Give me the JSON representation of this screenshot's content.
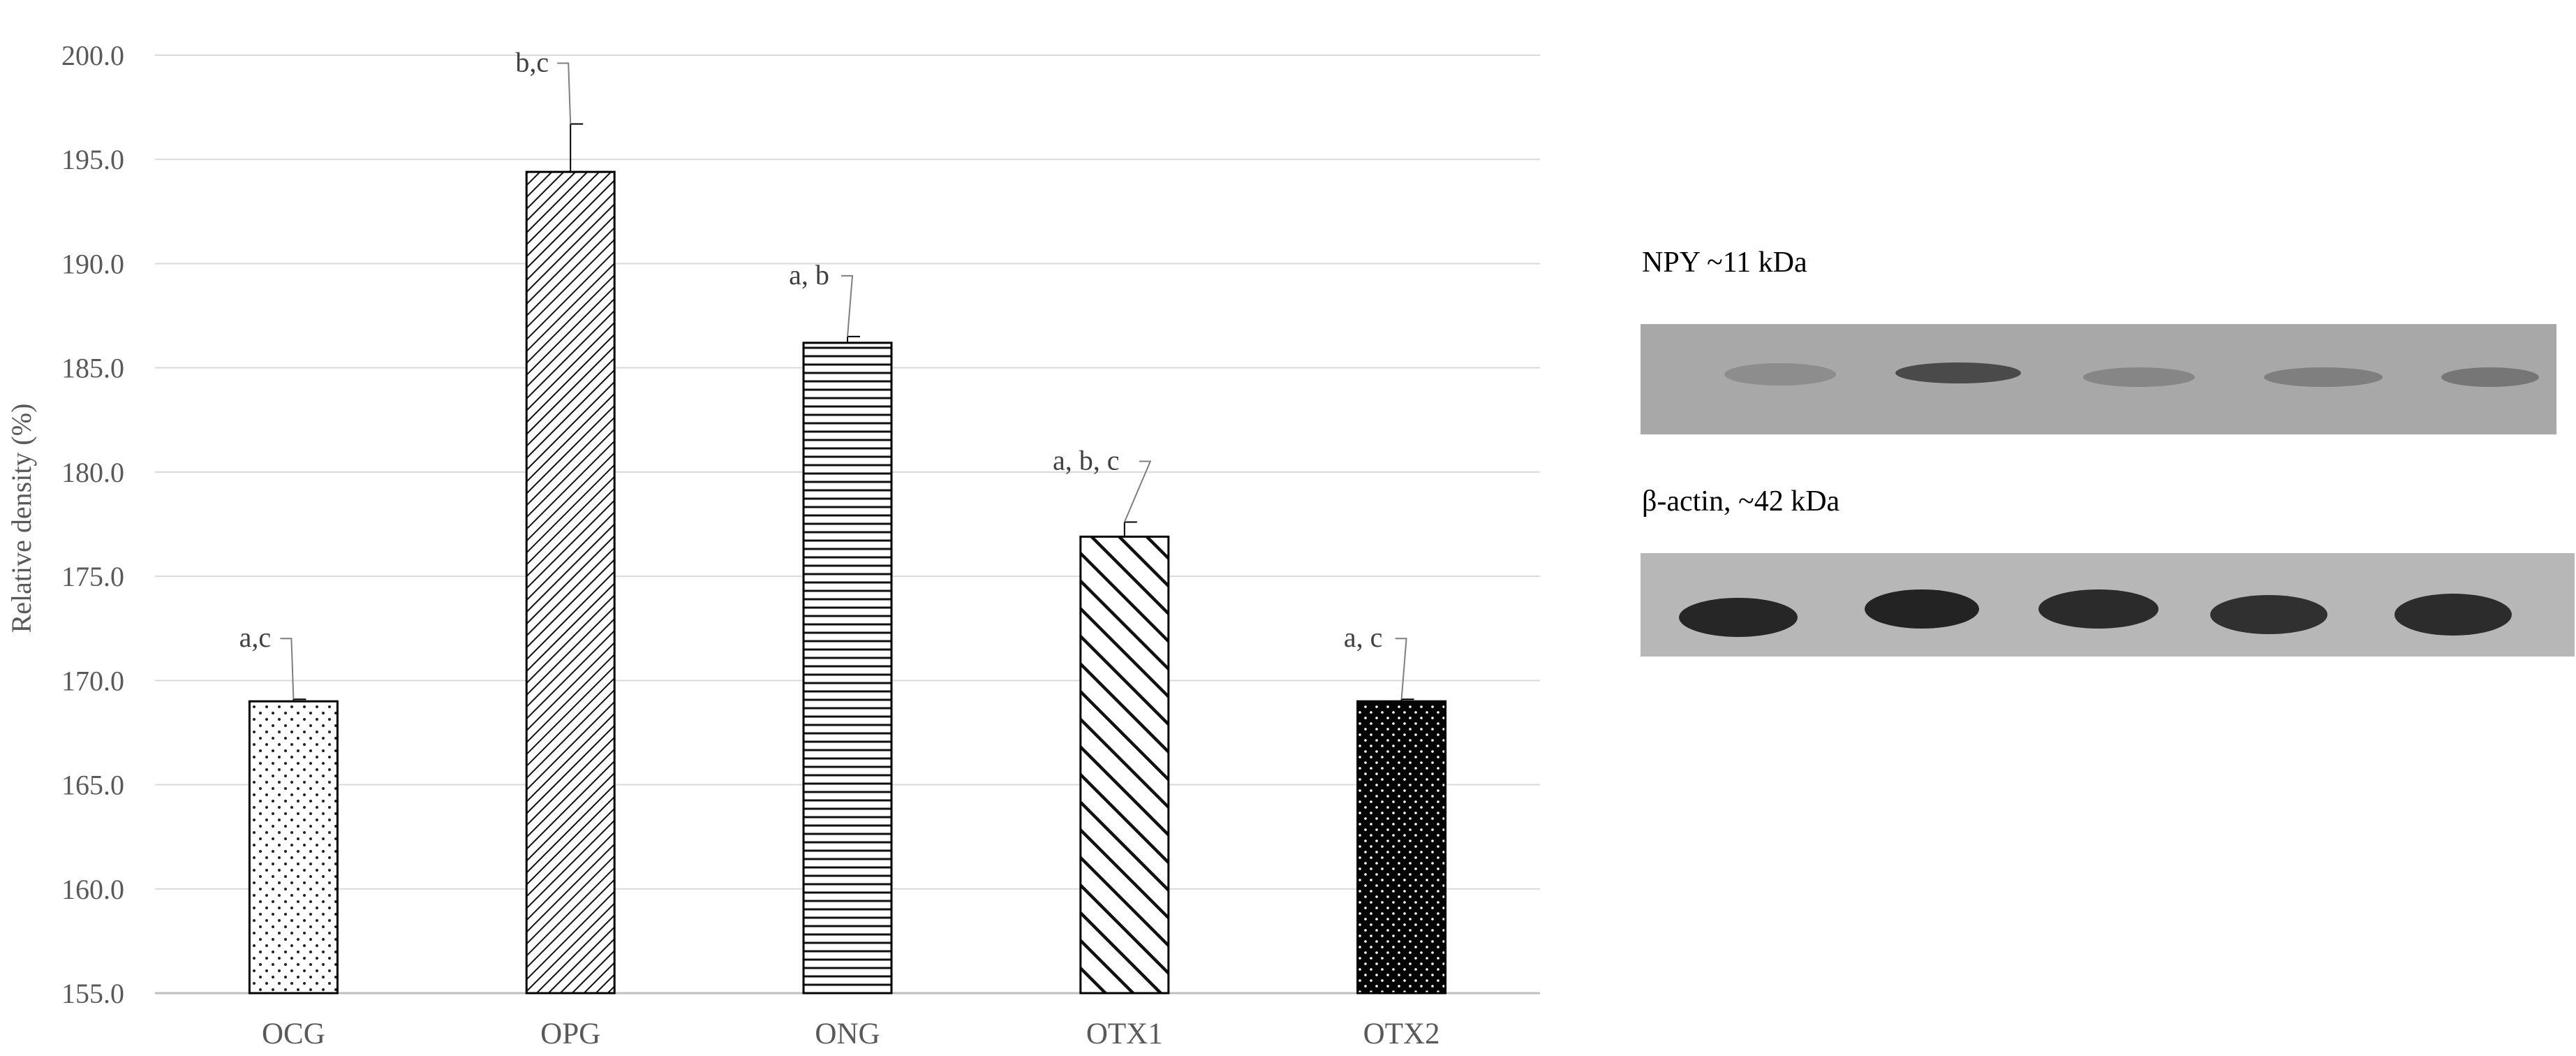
{
  "chart_data": {
    "type": "bar",
    "categories": [
      "OCG",
      "OPG",
      "ONG",
      "OTX1",
      "OTX2"
    ],
    "values": [
      169.0,
      194.4,
      186.2,
      176.9,
      169.0
    ],
    "errors": [
      0.1,
      2.3,
      0.3,
      0.7,
      0.1
    ],
    "significance_labels": [
      "a,c",
      "b,c",
      "a, b",
      "a, b, c",
      "a, c"
    ],
    "patterns": [
      "sparse-dots",
      "diagonal-right",
      "horizontal",
      "diagonal-left",
      "white-dots-on-black"
    ],
    "ylabel": "Relative density (%)",
    "ylim": [
      155.0,
      200.0
    ],
    "ytick_step": 5.0,
    "ytick_decimals": 1,
    "grid": true
  },
  "blot": {
    "npy_label": "NPY ~11 kDa",
    "actin_label": "β-actin, ~42 kDa"
  }
}
